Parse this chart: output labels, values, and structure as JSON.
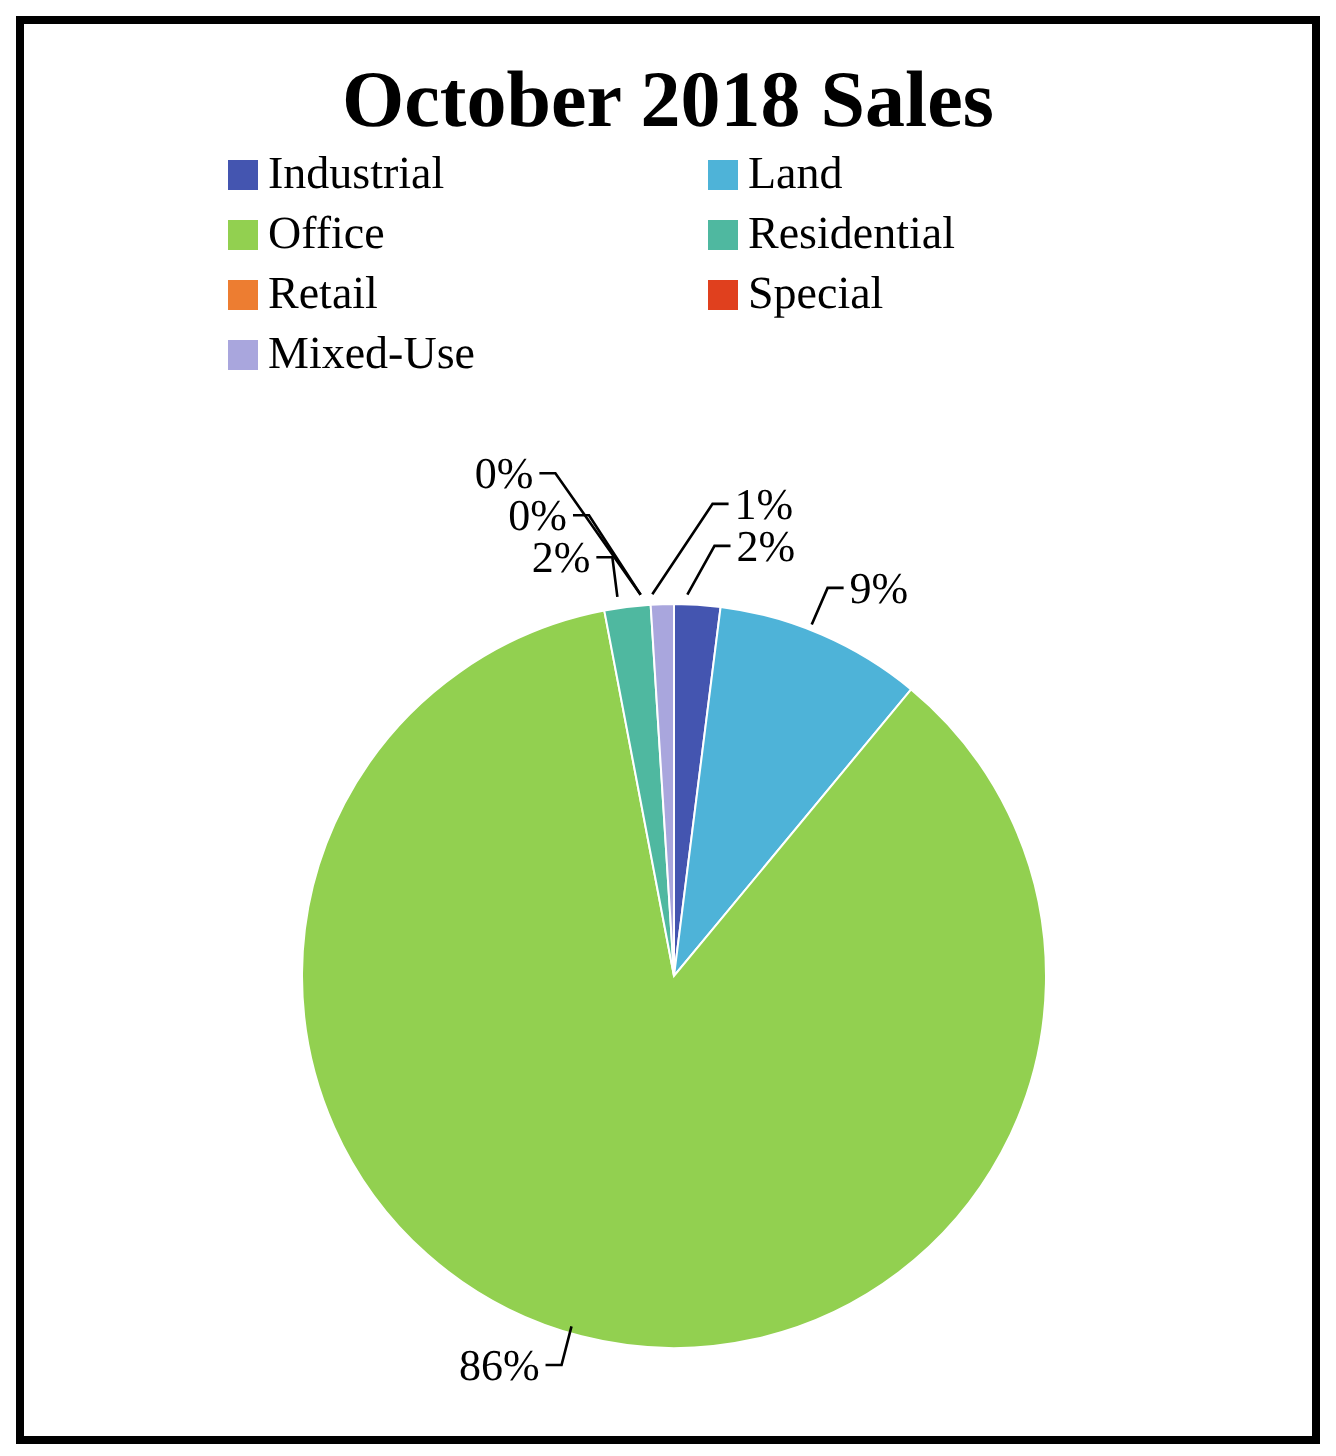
{
  "chart_data": {
    "type": "pie",
    "title": "October 2018 Sales",
    "categories": [
      "Industrial",
      "Land",
      "Office",
      "Residential",
      "Retail",
      "Special",
      "Mixed-Use"
    ],
    "values": [
      2,
      9,
      86,
      2,
      0,
      0,
      1
    ],
    "value_labels": [
      "2%",
      "9%",
      "86%",
      "2%",
      "0%",
      "0%",
      "1%"
    ],
    "colors": [
      "#4455b0",
      "#4eb3d8",
      "#92d050",
      "#4fb8a0",
      "#ed7d31",
      "#e0401e",
      "#a9a6dd"
    ],
    "legend": "top"
  }
}
